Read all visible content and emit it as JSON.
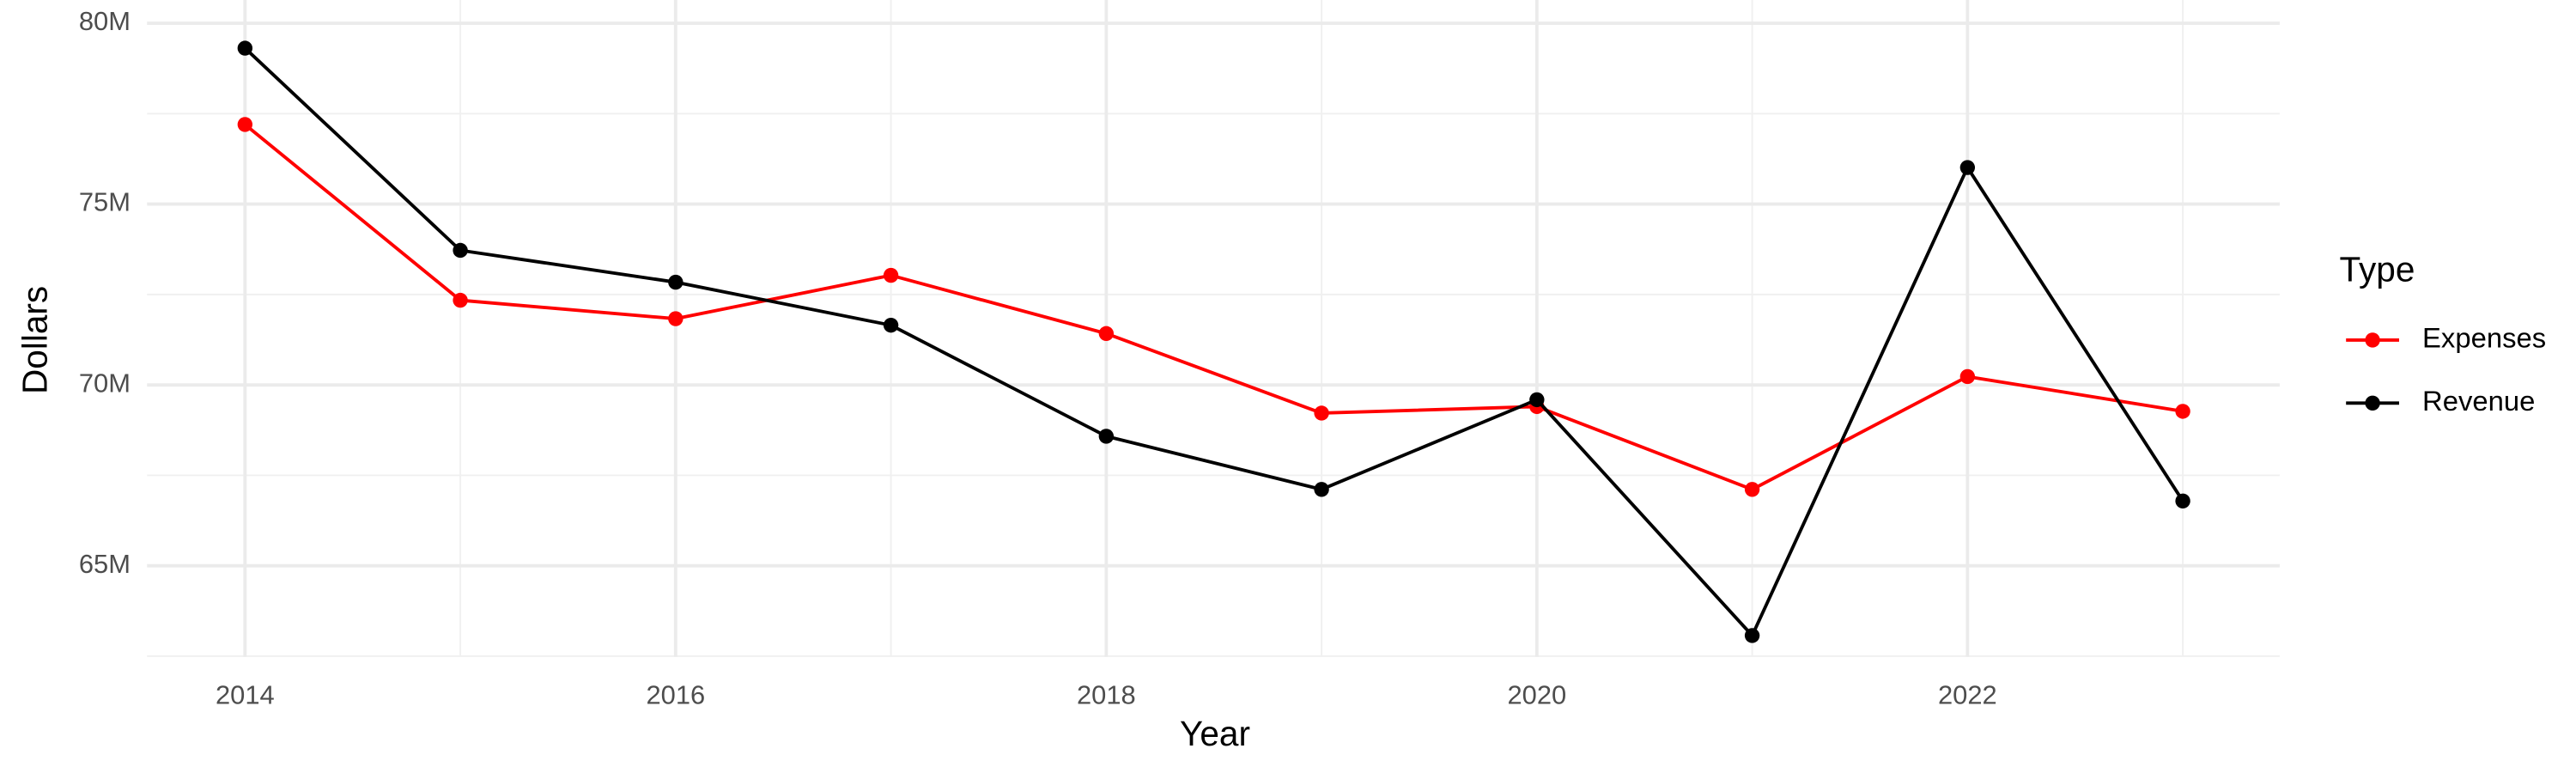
{
  "chart_data": {
    "type": "line",
    "x_label": "Year",
    "y_label": "Dollars",
    "legend_title": "Type",
    "legend_position": "right",
    "grid": true,
    "x": [
      2014,
      2015,
      2016,
      2017,
      2018,
      2019,
      2020,
      2021,
      2022,
      2023
    ],
    "series": [
      {
        "name": "Expenses",
        "color": "#ff0000",
        "values": [
          77200000,
          72340000,
          71830000,
          73030000,
          71420000,
          69220000,
          69400000,
          67110000,
          70230000,
          69270000
        ]
      },
      {
        "name": "Revenue",
        "color": "#000000",
        "values": [
          79310000,
          73720000,
          72840000,
          71650000,
          68580000,
          67110000,
          69590000,
          63070000,
          76010000,
          66790000
        ]
      }
    ],
    "xlim": [
      2013.545,
      2023.45
    ],
    "xticks": [
      2014,
      2016,
      2018,
      2020,
      2022
    ],
    "ylim": [
      62480000,
      80000000
    ],
    "yticks": [
      {
        "value": 65000000,
        "label": "65M"
      },
      {
        "value": 70000000,
        "label": "70M"
      },
      {
        "value": 75000000,
        "label": "75M"
      },
      {
        "value": 80000000,
        "label": "80M"
      }
    ]
  }
}
